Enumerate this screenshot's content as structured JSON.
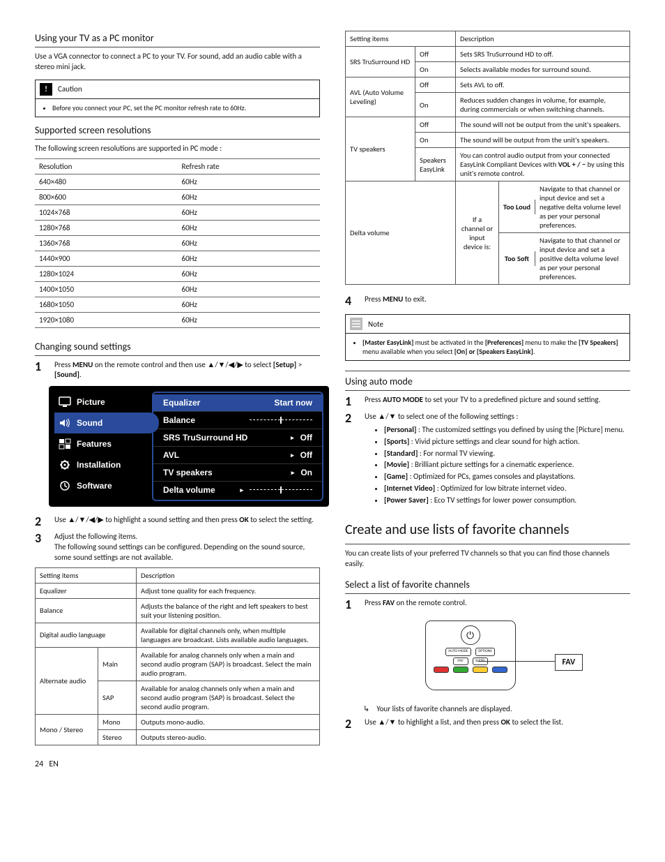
{
  "left": {
    "pcMonitor": {
      "heading": "Using your TV as a PC monitor",
      "intro": "Use a VGA connector to connect a PC to your TV. For sound, add an audio cable with a stereo mini jack.",
      "caution_label": "Caution",
      "caution_text": "Before you connect your PC, set the PC monitor refresh rate to 60Hz."
    },
    "resolutions": {
      "heading": "Supported screen resolutions",
      "intro": "The following screen resolutions are supported in PC mode :",
      "col1": "Resolution",
      "col2": "Refresh rate",
      "rows": [
        {
          "r": "640×480",
          "h": "60Hz"
        },
        {
          "r": "800×600",
          "h": "60Hz"
        },
        {
          "r": "1024×768",
          "h": "60Hz"
        },
        {
          "r": "1280×768",
          "h": "60Hz"
        },
        {
          "r": "1360×768",
          "h": "60Hz"
        },
        {
          "r": "1440×900",
          "h": "60Hz"
        },
        {
          "r": "1280×1024",
          "h": "60Hz"
        },
        {
          "r": "1400×1050",
          "h": "60Hz"
        },
        {
          "r": "1680×1050",
          "h": "60Hz"
        },
        {
          "r": "1920×1080",
          "h": "60Hz"
        }
      ]
    },
    "sound": {
      "heading": "Changing sound settings",
      "step1_a": "Press ",
      "step1_menu": "MENU",
      "step1_b": " on the remote control and then use ▲/▼/◀/▶ to select ",
      "step1_setup": "[Setup]",
      "step1_gt": " > ",
      "step1_sound": "[Sound]",
      "step1_dot": ".",
      "menu": {
        "left": [
          "Picture",
          "Sound",
          "Features",
          "Installation",
          "Software"
        ],
        "right": [
          {
            "k": "Equalizer",
            "v": "Start now",
            "hi": true
          },
          {
            "k": "Balance",
            "v": "",
            "slider": true
          },
          {
            "k": "SRS TruSurround HD",
            "v": "Off",
            "ptr": true
          },
          {
            "k": "AVL",
            "v": "Off",
            "ptr": true
          },
          {
            "k": "TV speakers",
            "v": "On",
            "ptr": true
          },
          {
            "k": "Delta volume",
            "v": "",
            "slider": true,
            "ptr": true
          }
        ]
      },
      "step2_a": "Use ▲/▼/◀/▶ to highlight a sound setting and then press ",
      "step2_ok": "OK",
      "step2_b": " to select the setting.",
      "step3_a": "Adjust the following items.",
      "step3_b": "The following sound settings can be configured. Depending on the sound source, some sound settings are not available.",
      "tbl_h1": "Setting items",
      "tbl_h2": "Description",
      "rows": {
        "eq": {
          "k": "Equalizer",
          "d": "Adjust tone quality for each frequency."
        },
        "bal": {
          "k": "Balance",
          "d": "Adjusts the balance of the right and left speakers to best suit your listening position."
        },
        "dal": {
          "k": "Digital audio language",
          "d": "Available for digital channels only, when multiple languages are broadcast. Lists available audio languages."
        },
        "alt": {
          "k": "Alternate audio",
          "main": "Main",
          "main_d": "Available for analog channels only when a main and second audio program (SAP) is broadcast. Select the main audio program.",
          "sap": "SAP",
          "sap_d": "Available for analog channels only when a main and second audio program (SAP) is broadcast. Select the second audio program."
        },
        "ms": {
          "k": "Mono / Stereo",
          "mono": "Mono",
          "mono_d": "Outputs mono-audio.",
          "stereo": "Stereo",
          "stereo_d": "Outputs stereo-audio."
        }
      }
    },
    "footer_page": "24",
    "footer_lang": "EN"
  },
  "right": {
    "tbl_h1": "Setting items",
    "tbl_h2": "Description",
    "srs": {
      "k": "SRS TruSurround HD",
      "off": "Off",
      "off_d": "Sets SRS TruSurround HD to off.",
      "on": "On",
      "on_d": "Selects available modes for surround sound."
    },
    "avl": {
      "k": "AVL (Auto Volume Leveling)",
      "off": "Off",
      "off_d": "Sets AVL to off.",
      "on": "On",
      "on_d": "Reduces sudden changes in volume, for example, during commercials or when switching channels."
    },
    "tvs": {
      "k": "TV speakers",
      "off": "Off",
      "off_d": "The sound will not be output from the unit's speakers.",
      "on": "On",
      "on_d": "The sound will be output from the unit's speakers.",
      "se": "Speakers EasyLink",
      "se_d_a": "You can control audio output from your connected EasyLink Compliant Devices with ",
      "se_d_b": "VOL + / −",
      "se_d_c": " by using this unit's remote control."
    },
    "delta": {
      "k": "Delta volume",
      "mid": "If a channel or input device is:",
      "loud": "Too Loud",
      "loud_d": "Navigate to that channel or input device and set a negative delta volume level as per your personal preferences.",
      "soft": "Too Soft",
      "soft_d": "Navigate to that channel or input device and set a positive delta volume level as per your personal preferences."
    },
    "step4_a": "Press ",
    "step4_menu": "MENU",
    "step4_b": " to exit.",
    "note_label": "Note",
    "note_a": "[Master EasyLink]",
    "note_b": " must be activated in the ",
    "note_c": "[Preferences]",
    "note_d": " menu to make the ",
    "note_e": "[TV Speakers]",
    "note_f": " menu available when you select ",
    "note_g": "[On] or [Speakers EasyLink]",
    "note_h": ".",
    "auto": {
      "heading": "Using auto mode",
      "s1_a": "Press ",
      "s1_b": "AUTO MODE",
      "s1_c": " to set your TV to a predefined picture and sound setting.",
      "s2": "Use ▲/▼ to select one of the following settings :",
      "items": [
        {
          "k": "[Personal]",
          "d": " : The customized settings you defined by using the [Picture] menu."
        },
        {
          "k": "[Sports]",
          "d": " : Vivid picture settings and clear sound for high action."
        },
        {
          "k": "[Standard]",
          "d": " : For normal TV viewing."
        },
        {
          "k": "[Movie]",
          "d": " : Brilliant picture settings for a cinematic experience."
        },
        {
          "k": "[Game]",
          "d": " : Optimized for PCs, games consoles and playstations."
        },
        {
          "k": "[Internet Video]",
          "d": " : Optimized for low bitrate internet video."
        },
        {
          "k": "[Power Saver]",
          "d": " : Eco TV settings for lower power consumption."
        }
      ]
    },
    "fav": {
      "heading": "Create and use lists of favorite channels",
      "intro": "You can create lists of your preferred TV channels so that you can find those channels easily.",
      "sub": "Select a list of favorite channels",
      "s1_a": "Press ",
      "s1_b": "FAV",
      "s1_c": " on the remote control.",
      "fav_label": "FAV",
      "remote_btns": {
        "auto": "AUTO MODE",
        "opt": "OPTIONS",
        "fav": "FAV",
        "sleep": "SLEEP"
      },
      "bullet": "Your lists of favorite channels are displayed.",
      "s2_a": "Use ▲/▼ to highlight a list, and then press ",
      "s2_b": "OK",
      "s2_c": " to select the list."
    }
  }
}
